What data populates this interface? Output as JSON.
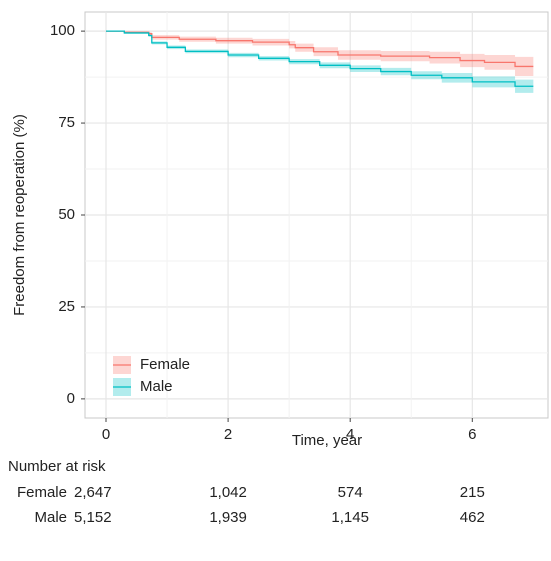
{
  "chart_data": {
    "type": "km",
    "xlabel": "Time, year",
    "ylabel": "Freedom from reoperation (%)",
    "xlim": [
      -0.344,
      7.24
    ],
    "ylim": [
      -5.2,
      105.2
    ],
    "xticks": [
      0,
      2,
      4,
      6
    ],
    "yticks": [
      0,
      25,
      50,
      75,
      100
    ],
    "grid": true,
    "legend_position": "bottom-left",
    "series": [
      {
        "name": "Female",
        "color": "#F8766D",
        "x": [
          0,
          0.3,
          0.7,
          0.75,
          1.2,
          1.8,
          2.4,
          3.0,
          3.1,
          3.4,
          3.8,
          4.5,
          5.3,
          5.8,
          6.2,
          6.7,
          7.0
        ],
        "values": [
          100,
          99.7,
          99.3,
          98.3,
          97.8,
          97.4,
          97.0,
          96.3,
          95.5,
          94.4,
          93.5,
          93.2,
          92.8,
          92.0,
          91.5,
          90.4,
          90.4
        ],
        "lower": [
          100,
          99.4,
          98.8,
          97.7,
          97.1,
          96.6,
          96.1,
          95.3,
          94.4,
          93.2,
          92.2,
          91.8,
          91.2,
          90.2,
          89.5,
          87.8,
          87.8
        ],
        "upper": [
          100,
          99.9,
          99.7,
          98.9,
          98.5,
          98.2,
          97.9,
          97.3,
          96.6,
          95.6,
          94.8,
          94.6,
          94.4,
          93.8,
          93.5,
          93.0,
          93.0
        ]
      },
      {
        "name": "Male",
        "color": "#00BFC4",
        "x": [
          0,
          0.3,
          0.7,
          0.75,
          1.0,
          1.3,
          2.0,
          2.5,
          3.0,
          3.5,
          4.0,
          4.5,
          5.0,
          5.5,
          6.0,
          6.7,
          7.0
        ],
        "values": [
          100,
          99.5,
          98.8,
          96.8,
          95.6,
          94.5,
          93.5,
          92.6,
          91.7,
          90.7,
          89.8,
          89.0,
          88.0,
          87.3,
          86.2,
          85.0,
          85.0
        ],
        "lower": [
          100,
          99.3,
          98.5,
          96.4,
          95.1,
          94.0,
          92.9,
          92.0,
          91.0,
          89.9,
          88.9,
          88.0,
          86.9,
          86.0,
          84.7,
          83.2,
          83.2
        ],
        "upper": [
          100,
          99.7,
          99.1,
          97.2,
          96.1,
          95.0,
          94.1,
          93.2,
          92.4,
          91.5,
          90.7,
          90.0,
          89.1,
          88.6,
          87.7,
          86.8,
          86.8
        ]
      }
    ]
  },
  "risk_table": {
    "title": "Number at risk",
    "rows": [
      {
        "label": "Female",
        "values": [
          "2,647",
          "1,042",
          "574",
          "215"
        ]
      },
      {
        "label": "Male",
        "values": [
          "5,152",
          "1,939",
          "1,145",
          "462"
        ]
      }
    ]
  }
}
